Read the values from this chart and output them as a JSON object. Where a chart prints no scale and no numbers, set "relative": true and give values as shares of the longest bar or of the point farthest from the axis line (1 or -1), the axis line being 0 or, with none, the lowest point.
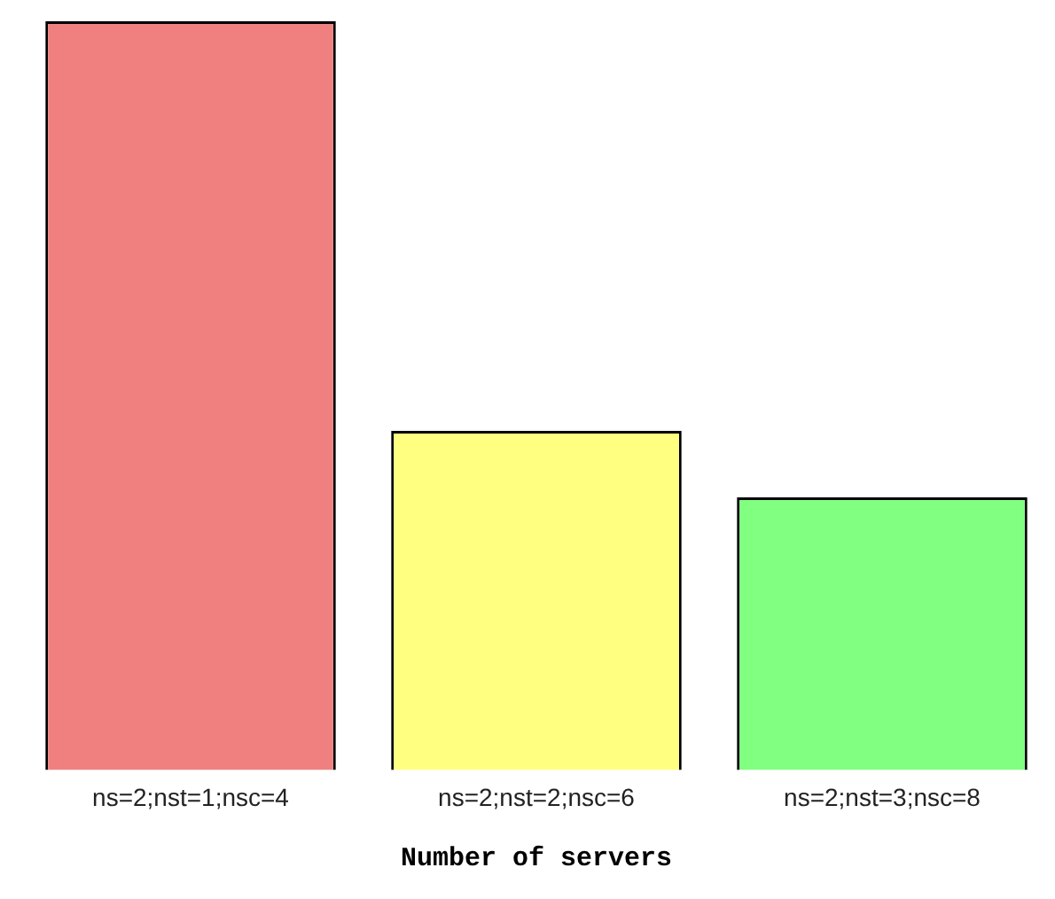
{
  "chart_data": {
    "type": "bar",
    "xlabel": "Number of servers",
    "relative": true,
    "categories": [
      "ns=2;nst=1;nsc=4",
      "ns=2;nst=2;nsc=6",
      "ns=2;nst=3;nsc=8"
    ],
    "values": [
      1,
      0.453,
      0.364
    ],
    "colors": [
      "#f08080",
      "#ffff80",
      "#80ff80"
    ],
    "grid": false,
    "legend": false
  }
}
